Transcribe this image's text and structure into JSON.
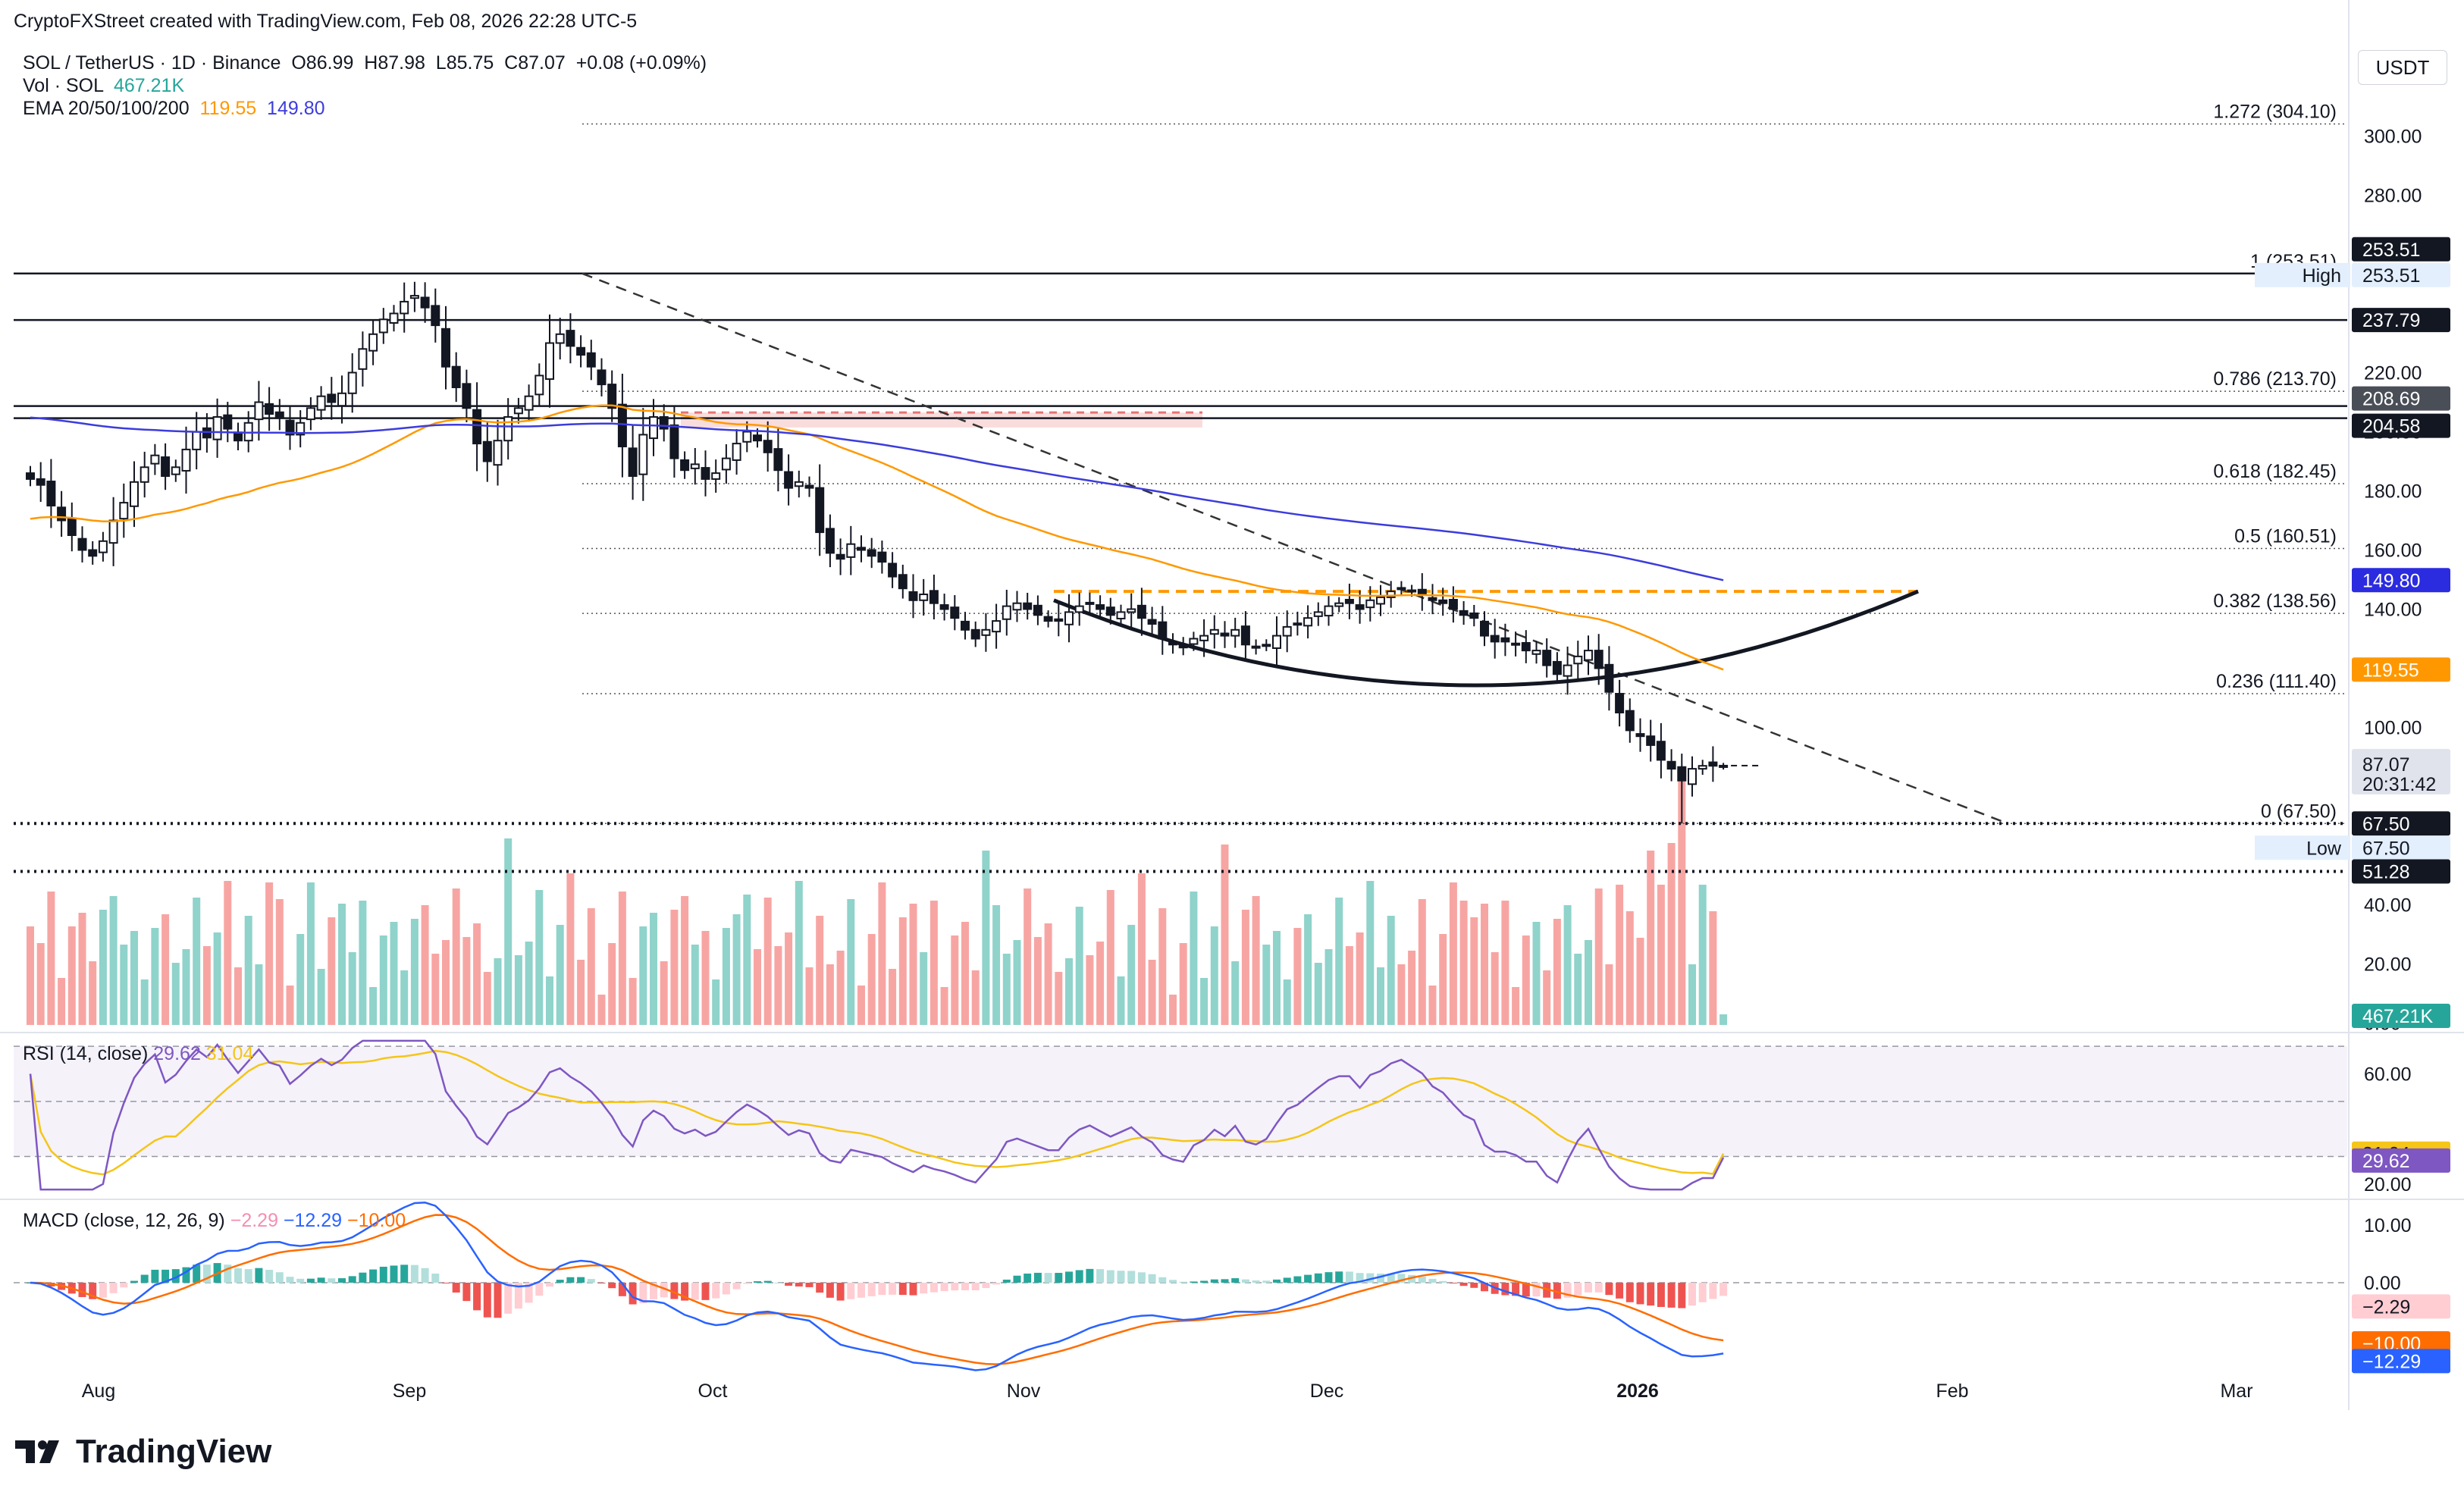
{
  "header": {
    "text": "CryptoFXStreet created with TradingView.com, Feb 08, 2026 22:28 UTC-5"
  },
  "legend": {
    "symbol": "SOL / TetherUS · 1D · Binance",
    "open": "O86.99",
    "high": "H87.98",
    "low": "L85.75",
    "close": "C87.07",
    "change": "+0.08 (+0.09%)",
    "vol_label": "Vol · SOL",
    "vol_value": "467.21K",
    "ema_label": "EMA 20/50/100/200",
    "ema_50": "119.55",
    "ema_200": "149.80"
  },
  "currency": "USDT",
  "colors": {
    "up": "#26a69a",
    "down": "#ef5350",
    "vol_up": "#8fd3cb",
    "vol_down": "#f7a5a3",
    "ema50": "#ff9800",
    "ema200": "#3c3cdc",
    "rsi": "#7e57c2",
    "rsi_ma": "#f5c518",
    "macd": "#2962ff",
    "signal": "#ff6d00",
    "black_label": "#131722",
    "orange_zone": "#ff9800",
    "red_zone": "#ef9a9a"
  },
  "brand": {
    "name": "TradingView",
    "icon": "tradingview-logo-icon"
  },
  "chart_data": [
    {
      "type": "candlestick",
      "name": "SOL / TetherUS",
      "timeframe": "1D",
      "exchange": "Binance",
      "x_ticks": [
        "Aug",
        "Sep",
        "Oct",
        "Nov",
        "Dec",
        "2026",
        "Feb",
        "Mar"
      ],
      "y_ticks": [
        0,
        20,
        40,
        60,
        80,
        100,
        120,
        140,
        160,
        180,
        200,
        220,
        240,
        260,
        280,
        300
      ],
      "y_tick_labels_shown": [
        "300.00",
        "280.00",
        "220.00",
        "200.00",
        "180.00",
        "160.00",
        "140.00",
        "100.00",
        "40.00",
        "20.00",
        "0.00"
      ],
      "ylim": [
        0,
        310
      ],
      "last_ohlc": {
        "open": 86.99,
        "high": 87.98,
        "low": 85.75,
        "close": 87.07
      },
      "countdown": "20:31:42",
      "close_approx": [
        184,
        182,
        175,
        170,
        165,
        160,
        158,
        163,
        170,
        176,
        183,
        188,
        192,
        185,
        188,
        194,
        200,
        198,
        205,
        201,
        197,
        203,
        210,
        206,
        205,
        199,
        203,
        208,
        212,
        210,
        213,
        220,
        228,
        233,
        238,
        240,
        244,
        246,
        242,
        236,
        222,
        215,
        208,
        196,
        190,
        197,
        205,
        208,
        212,
        219,
        230,
        233,
        229,
        226,
        222,
        216,
        208,
        195,
        185,
        199,
        205,
        201,
        191,
        187,
        189,
        184,
        186,
        191,
        196,
        200,
        197,
        193,
        187,
        181,
        183,
        181,
        166,
        159,
        157,
        162,
        160,
        158,
        156,
        151,
        147,
        143,
        145,
        142,
        140,
        137,
        133,
        130,
        133,
        136,
        141,
        142,
        140,
        138,
        136,
        136,
        139,
        141,
        142,
        140,
        138,
        139,
        140,
        137,
        135,
        130,
        128,
        127,
        130,
        131,
        133,
        131,
        133,
        128,
        127,
        128,
        131,
        134,
        135,
        137,
        139,
        141,
        142,
        142,
        140,
        143,
        144,
        146,
        147,
        146,
        145,
        143,
        142,
        140,
        138,
        137,
        131,
        129,
        129,
        128,
        126,
        126,
        121,
        118,
        121,
        124,
        126,
        120,
        112,
        105,
        99,
        97,
        94,
        89,
        86,
        82,
        86,
        87,
        87,
        87
      ],
      "ema_50_current": 119.55,
      "ema_200_current": 149.8,
      "fibonacci": [
        {
          "level": "1.272",
          "value": 304.1
        },
        {
          "level": "1",
          "value": 253.51
        },
        {
          "level": "0.786",
          "value": 213.7
        },
        {
          "level": "0.618",
          "value": 182.45
        },
        {
          "level": "0.5",
          "value": 160.51
        },
        {
          "level": "0.382",
          "value": 138.56
        },
        {
          "level": "0.236",
          "value": 111.4
        },
        {
          "level": "0",
          "value": 67.5
        }
      ],
      "fib_labels": [
        "1.272 (304.10)",
        "1 (253.51)",
        "0.786 (213.70)",
        "0.618 (182.45)",
        "0.5 (160.51)",
        "0.382 (138.56)",
        "0.236 (111.40)",
        "0 (67.50)"
      ],
      "horizontal_levels": [
        {
          "value": 253.51,
          "label": "253.51",
          "style": "solid"
        },
        {
          "value": 237.79,
          "label": "237.79",
          "style": "solid"
        },
        {
          "value": 208.69,
          "label": "208.69",
          "style": "solid"
        },
        {
          "value": 204.58,
          "label": "204.58",
          "style": "solid"
        },
        {
          "value": 67.5,
          "label": "67.50",
          "style": "dotted"
        },
        {
          "value": 51.28,
          "label": "51.28",
          "style": "dotted"
        }
      ],
      "price_tags": [
        {
          "label": "High",
          "value": "253.51"
        },
        {
          "label": "Low",
          "value": "67.50"
        },
        {
          "label": "",
          "value": "149.80"
        },
        {
          "label": "",
          "value": "119.55"
        },
        {
          "label": "",
          "value": "87.07"
        }
      ],
      "annotations": {
        "neckline": 146,
        "descending_trendline": "from Sep high 253.51 to Feb low 67.50",
        "rounding_top_arc": "Nov to late Jan"
      }
    },
    {
      "type": "bar",
      "name": "Vol · SOL",
      "last_value": "467.21K"
    },
    {
      "type": "line",
      "name": "RSI (14, close)",
      "values_shown": {
        "rsi": 29.62,
        "rsi_ma": 31.04
      },
      "y_ticks": [
        20,
        60
      ],
      "y_tick_labels": [
        "20.00",
        "60.00"
      ],
      "bands": [
        30,
        50,
        70
      ],
      "ylim": [
        15,
        75
      ]
    },
    {
      "type": "line",
      "name": "MACD (close, 12, 26, 9)",
      "values_shown": {
        "histogram": -2.29,
        "macd": -12.29,
        "signal": -10.0
      },
      "value_labels": [
        "−2.29",
        "−12.29",
        "−10.00"
      ],
      "y_ticks": [
        0,
        10
      ],
      "y_tick_labels": [
        "0.00",
        "10.00"
      ],
      "ylim": [
        -16,
        16
      ]
    }
  ]
}
